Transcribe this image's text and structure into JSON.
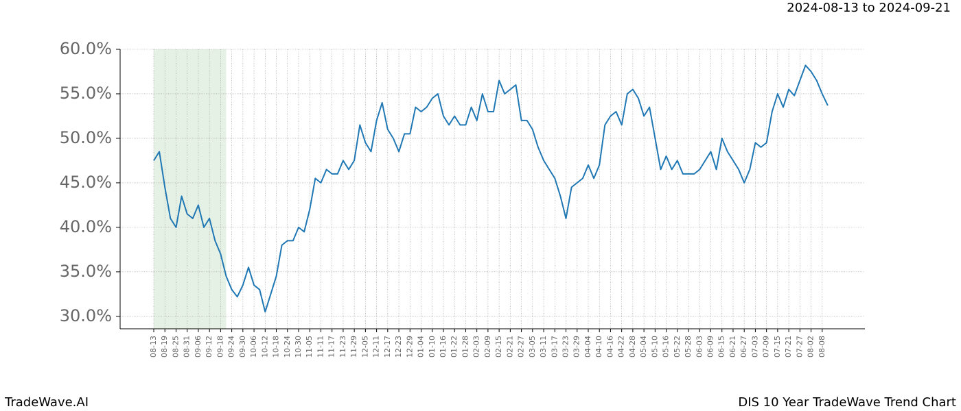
{
  "chart_data": {
    "type": "line",
    "title": "DIS 10 Year TradeWave Trend Chart",
    "subtitle": "2024-08-13 to 2024-09-21",
    "watermark": "TradeWave.AI",
    "categories": [
      "08-13",
      null,
      "08-19",
      null,
      "08-25",
      null,
      "08-31",
      null,
      "09-06",
      null,
      "09-12",
      null,
      "09-18",
      null,
      "09-24",
      null,
      "09-30",
      null,
      "10-06",
      null,
      "10-12",
      null,
      "10-18",
      null,
      "10-24",
      null,
      "10-30",
      null,
      "11-05",
      null,
      "11-11",
      null,
      "11-17",
      null,
      "11-23",
      null,
      "11-29",
      null,
      "12-05",
      null,
      "12-11",
      null,
      "12-17",
      null,
      "12-23",
      null,
      "12-29",
      null,
      "01-04",
      null,
      "01-10",
      null,
      "01-16",
      null,
      "01-22",
      null,
      "01-28",
      null,
      "02-03",
      null,
      "02-09",
      null,
      "02-15",
      null,
      "02-21",
      null,
      "02-27",
      null,
      "03-05",
      null,
      "03-11",
      null,
      "03-17",
      null,
      "03-23",
      null,
      "03-29",
      null,
      "04-04",
      null,
      "04-10",
      null,
      "04-16",
      null,
      "04-22",
      null,
      "04-28",
      null,
      "05-04",
      null,
      "05-10",
      null,
      "05-16",
      null,
      "05-22",
      null,
      "05-28",
      null,
      "06-03",
      null,
      "06-09",
      null,
      "06-15",
      null,
      "06-21",
      null,
      "06-27",
      null,
      "07-03",
      null,
      "07-09",
      null,
      "07-15",
      null,
      "07-21",
      null,
      "07-27",
      null,
      "08-02",
      null,
      "08-08",
      null
    ],
    "series": [
      {
        "name": "DIS",
        "color": "#1f77b4",
        "values": [
          47.5,
          48.5,
          44.5,
          41,
          40,
          43.5,
          41.5,
          41,
          42.5,
          40,
          41,
          38.5,
          37,
          34.5,
          33,
          32.2,
          33.5,
          35.5,
          33.5,
          33,
          30.5,
          32.5,
          34.5,
          38,
          38.5,
          38.5,
          40,
          39.5,
          42,
          45.5,
          45,
          46.5,
          46,
          46,
          47.5,
          46.5,
          47.5,
          51.5,
          49.5,
          48.5,
          52,
          54,
          51,
          50,
          48.5,
          50.5,
          50.5,
          53.5,
          53,
          53.5,
          54.5,
          55,
          52.5,
          51.5,
          52.5,
          51.5,
          51.5,
          53.5,
          52,
          55,
          53,
          53,
          56.5,
          55,
          55.5,
          56,
          52,
          52,
          51,
          49,
          47.5,
          46.5,
          45.5,
          43.5,
          41,
          44.5,
          45,
          45.5,
          47,
          45.5,
          47,
          51.5,
          52.5,
          53,
          51.5,
          55,
          55.5,
          54.5,
          52.5,
          53.5,
          50,
          46.5,
          48,
          46.5,
          47.5,
          46,
          46,
          46,
          46.5,
          47.5,
          48.5,
          46.5,
          50,
          48.5,
          47.5,
          46.5,
          45,
          46.5,
          49.5,
          49,
          49.5,
          53,
          55,
          53.5,
          55.5,
          54.8,
          56.5,
          58.2,
          57.5,
          56.5,
          55,
          53.7
        ]
      }
    ],
    "ylim": [
      28.6,
      60
    ],
    "yticks": [
      {
        "value": 30,
        "label": "30.0%"
      },
      {
        "value": 35,
        "label": "35.0%"
      },
      {
        "value": 40,
        "label": "40.0%"
      },
      {
        "value": 45,
        "label": "45.0%"
      },
      {
        "value": 50,
        "label": "50.0%"
      },
      {
        "value": 55,
        "label": "55.0%"
      },
      {
        "value": 60,
        "label": "60.0%"
      }
    ],
    "grid": true,
    "highlight_range": [
      0,
      13
    ],
    "highlight_color": "#d5e8d4"
  }
}
